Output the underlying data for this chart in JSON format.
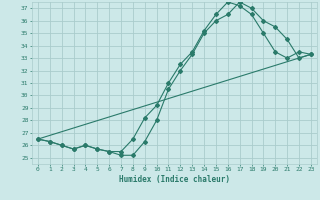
{
  "xlabel": "Humidex (Indice chaleur)",
  "xlim": [
    -0.5,
    23.5
  ],
  "ylim": [
    24.5,
    37.5
  ],
  "yticks": [
    25,
    26,
    27,
    28,
    29,
    30,
    31,
    32,
    33,
    34,
    35,
    36,
    37
  ],
  "xticks": [
    0,
    1,
    2,
    3,
    4,
    5,
    6,
    7,
    8,
    9,
    10,
    11,
    12,
    13,
    14,
    15,
    16,
    17,
    18,
    19,
    20,
    21,
    22,
    23
  ],
  "bg_color": "#cce8e8",
  "grid_color": "#aacccc",
  "line_color": "#2a7a6a",
  "line1_x": [
    0,
    1,
    2,
    3,
    4,
    5,
    6,
    7,
    8,
    9,
    10,
    11,
    12,
    13,
    14,
    15,
    16,
    17,
    18,
    19,
    20,
    21,
    22,
    23
  ],
  "line1_y": [
    26.5,
    26.3,
    26.0,
    25.7,
    26.0,
    25.7,
    25.5,
    25.2,
    25.2,
    26.3,
    28.0,
    30.5,
    32.0,
    33.3,
    35.0,
    36.0,
    36.5,
    37.5,
    37.0,
    36.0,
    35.5,
    34.5,
    33.0,
    33.3
  ],
  "line2_x": [
    0,
    1,
    2,
    3,
    4,
    5,
    6,
    7,
    8,
    9,
    10,
    11,
    12,
    13,
    14,
    15,
    16,
    17,
    18,
    19,
    20,
    21,
    22,
    23
  ],
  "line2_y": [
    26.5,
    26.3,
    26.0,
    25.7,
    26.0,
    25.7,
    25.5,
    25.5,
    26.5,
    28.2,
    29.2,
    31.0,
    32.5,
    33.5,
    35.2,
    36.5,
    37.5,
    37.2,
    36.5,
    35.0,
    33.5,
    33.0,
    33.5,
    33.3
  ],
  "line3_x": [
    0,
    23
  ],
  "line3_y": [
    26.5,
    33.3
  ]
}
